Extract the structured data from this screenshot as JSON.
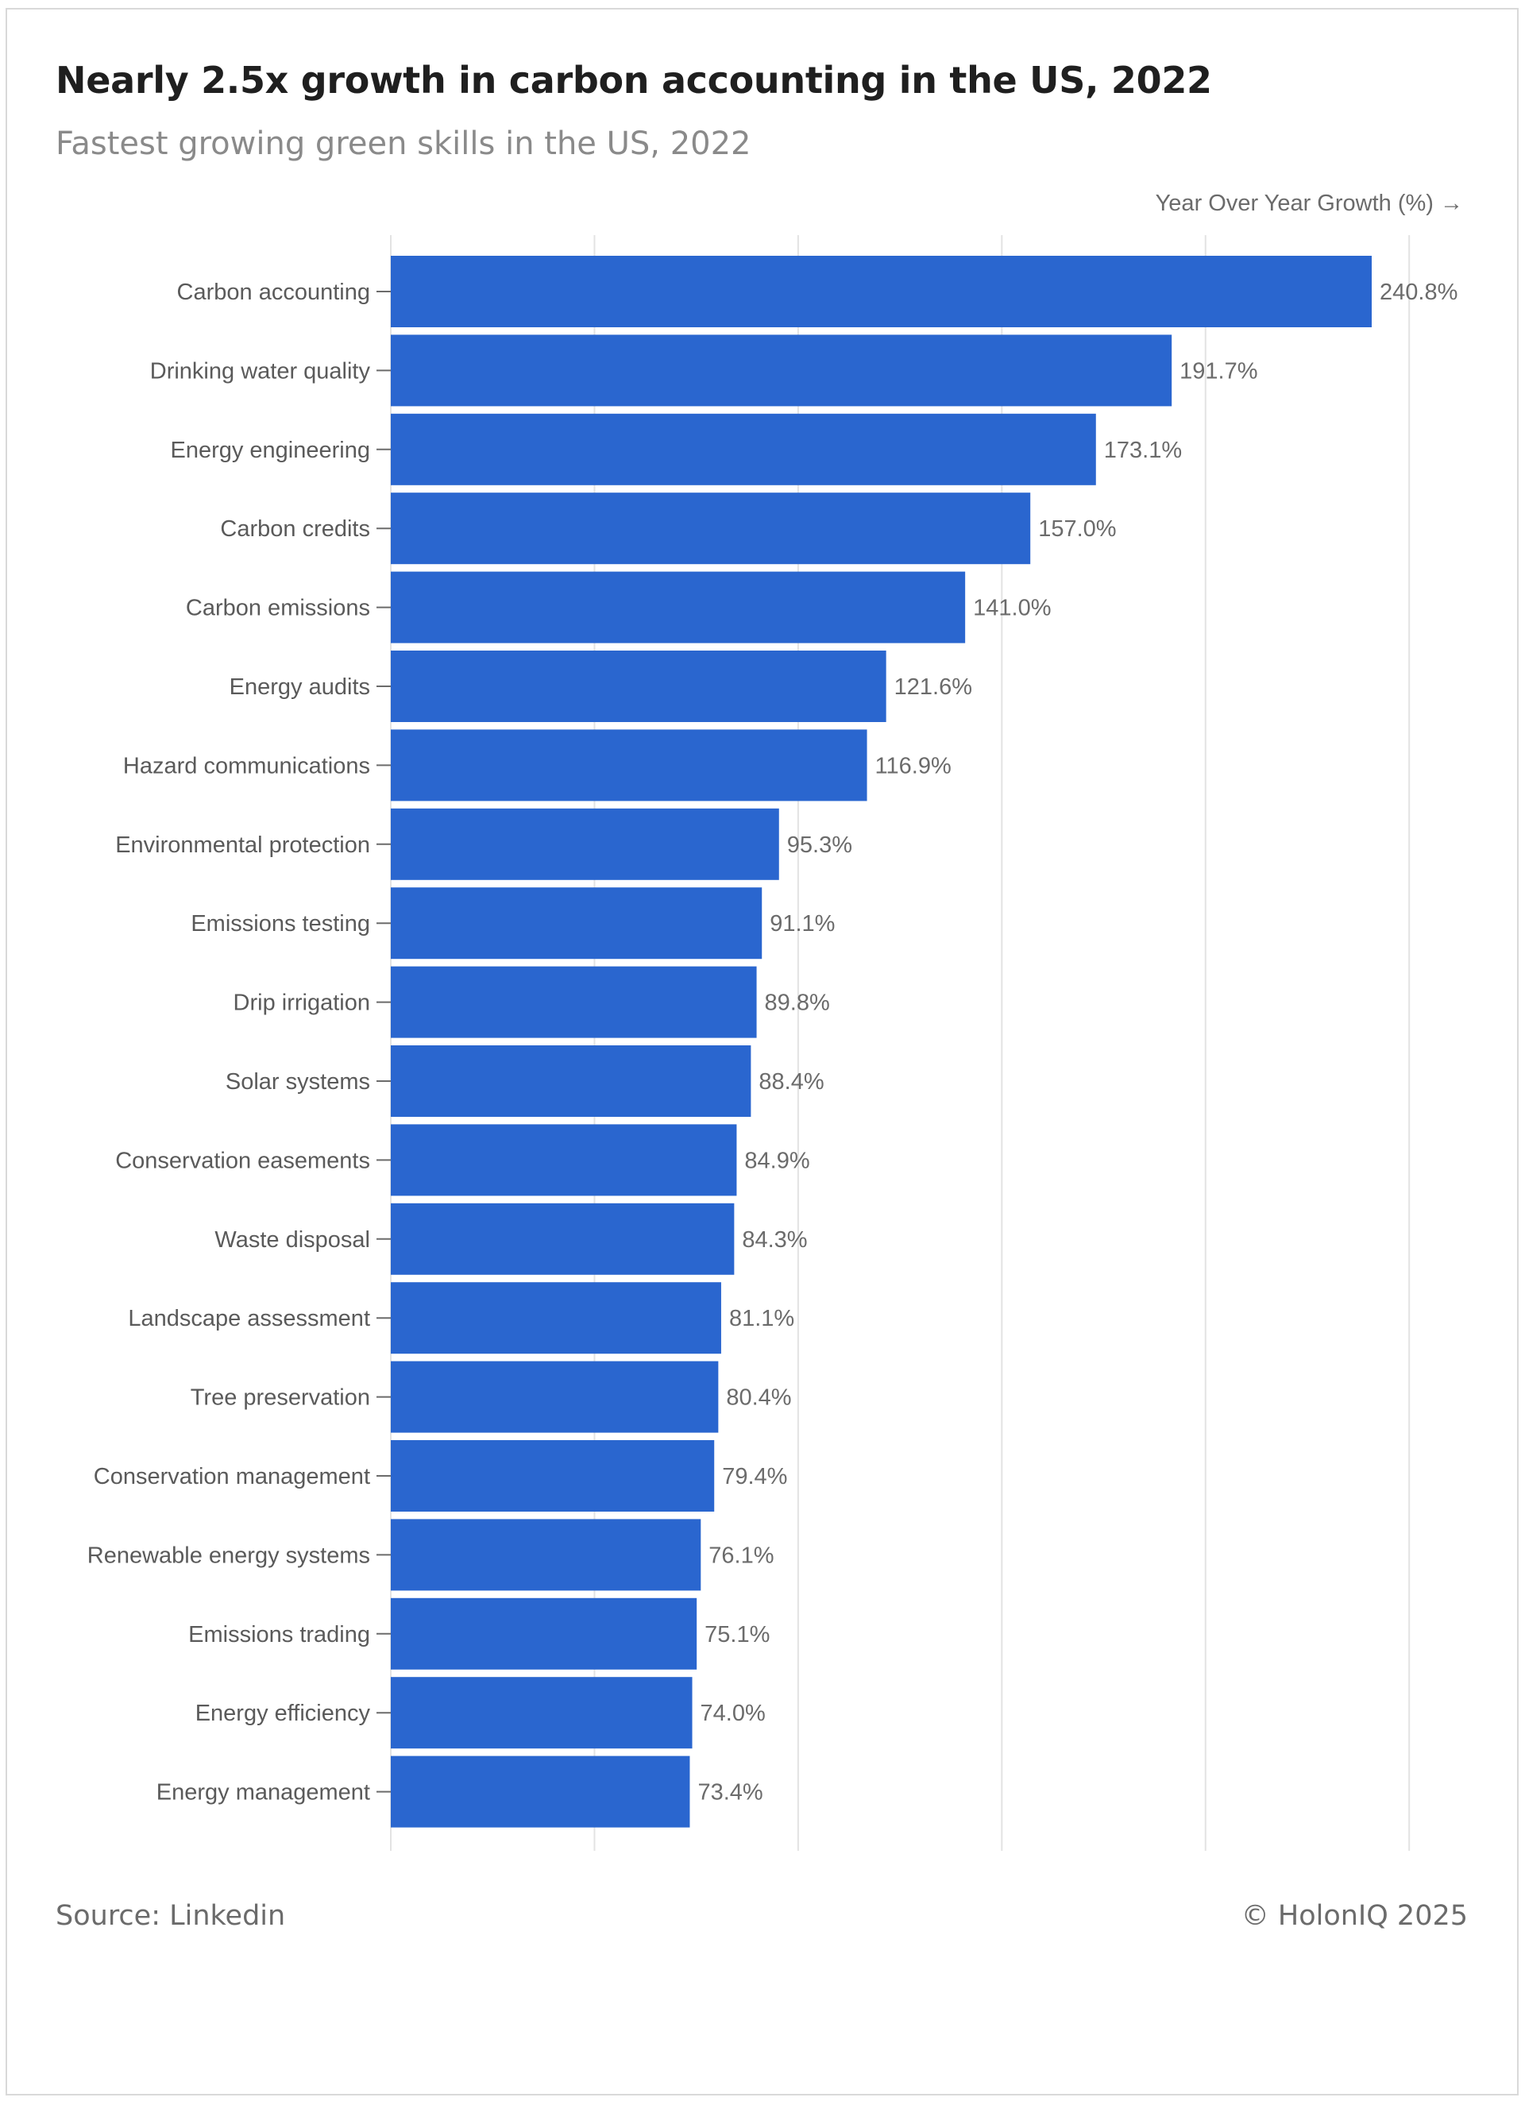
{
  "header": {
    "title": "Nearly 2.5x growth in carbon accounting in the US, 2022",
    "subtitle": "Fastest growing green skills in the US, 2022",
    "axis_title": "Year Over Year Growth (%) →"
  },
  "footer": {
    "source": "Source: Linkedin",
    "copyright": "© HolonIQ 2025"
  },
  "colors": {
    "bar": "#2a66cf",
    "grid": "#e3e3e3",
    "tick": "#6b6b6b"
  },
  "chart_data": {
    "type": "bar",
    "orientation": "horizontal",
    "title": "Nearly 2.5x growth in carbon accounting in the US, 2022",
    "subtitle": "Fastest growing green skills in the US, 2022",
    "xlabel": "Year Over Year Growth (%) →",
    "ylabel": "",
    "xlim": [
      0,
      250
    ],
    "grid": true,
    "value_suffix": "%",
    "categories": [
      "Carbon accounting",
      "Drinking water quality",
      "Energy engineering",
      "Carbon credits",
      "Carbon emissions",
      "Energy audits",
      "Hazard communications",
      "Environmental protection",
      "Emissions testing",
      "Drip irrigation",
      "Solar systems",
      "Conservation easements",
      "Waste disposal",
      "Landscape assessment",
      "Tree preservation",
      "Conservation management",
      "Renewable energy systems",
      "Emissions trading",
      "Energy efficiency",
      "Energy management"
    ],
    "values": [
      240.8,
      191.7,
      173.1,
      157.0,
      141.0,
      121.6,
      116.9,
      95.3,
      91.1,
      89.8,
      88.4,
      84.9,
      84.3,
      81.1,
      80.4,
      79.4,
      76.1,
      75.1,
      74.0,
      73.4
    ]
  }
}
